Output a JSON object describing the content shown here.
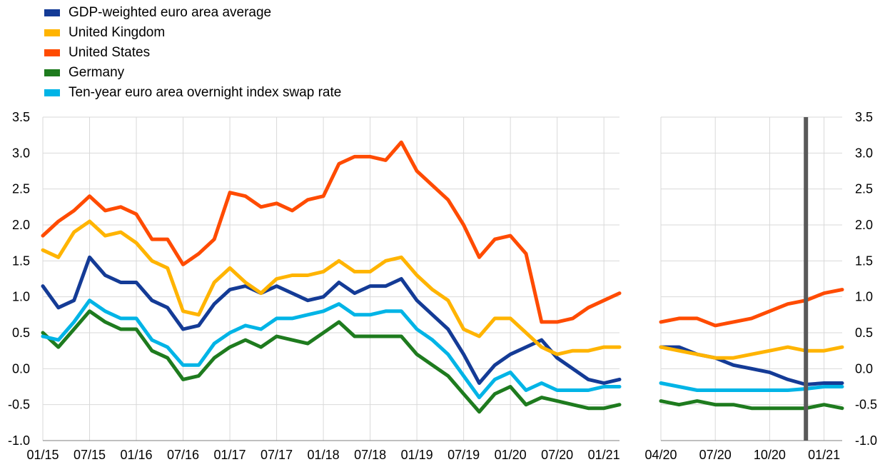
{
  "legend": [
    {
      "label": "GDP-weighted euro area average",
      "color": "#143B96"
    },
    {
      "label": "United Kingdom",
      "color": "#FFB400"
    },
    {
      "label": "United States",
      "color": "#FF4B00"
    },
    {
      "label": "Germany",
      "color": "#1E7B1E"
    },
    {
      "label": "Ten-year euro area overnight index swap rate",
      "color": "#00B4E6"
    }
  ],
  "chart_data": [
    {
      "type": "line",
      "title": "",
      "xlabel": "",
      "ylabel": "",
      "x_tick_labels": [
        "01/15",
        "07/15",
        "01/16",
        "07/16",
        "01/17",
        "07/17",
        "01/18",
        "07/18",
        "01/19",
        "07/19",
        "01/20",
        "07/20",
        "01/21"
      ],
      "y_tick_labels": [
        "3.5",
        "3.0",
        "2.5",
        "2.0",
        "1.5",
        "1.0",
        "0.5",
        "0.0",
        "-0.5",
        "-1.0"
      ],
      "ylim": [
        -1.0,
        3.5
      ],
      "grid": true,
      "x": [
        "01/15",
        "03/15",
        "05/15",
        "07/15",
        "09/15",
        "11/15",
        "01/16",
        "03/16",
        "05/16",
        "07/16",
        "09/16",
        "11/16",
        "01/17",
        "03/17",
        "05/17",
        "07/17",
        "09/17",
        "11/17",
        "01/18",
        "03/18",
        "05/18",
        "07/18",
        "09/18",
        "11/18",
        "01/19",
        "03/19",
        "05/19",
        "07/19",
        "09/19",
        "11/19",
        "01/20",
        "03/20",
        "05/20",
        "07/20",
        "09/20",
        "11/20",
        "01/21",
        "02/21"
      ],
      "series": [
        {
          "name": "GDP-weighted euro area average",
          "color": "#143B96",
          "values": [
            1.15,
            0.85,
            0.95,
            1.55,
            1.3,
            1.2,
            1.2,
            0.95,
            0.85,
            0.55,
            0.6,
            0.9,
            1.1,
            1.15,
            1.05,
            1.15,
            1.05,
            0.95,
            1.0,
            1.2,
            1.05,
            1.15,
            1.15,
            1.25,
            0.95,
            0.75,
            0.55,
            0.2,
            -0.2,
            0.05,
            0.2,
            0.3,
            0.4,
            0.15,
            0.0,
            -0.15,
            -0.2,
            -0.15
          ]
        },
        {
          "name": "United Kingdom",
          "color": "#FFB400",
          "values": [
            1.65,
            1.55,
            1.9,
            2.05,
            1.85,
            1.9,
            1.75,
            1.5,
            1.4,
            0.8,
            0.75,
            1.2,
            1.4,
            1.2,
            1.05,
            1.25,
            1.3,
            1.3,
            1.35,
            1.5,
            1.35,
            1.35,
            1.5,
            1.55,
            1.3,
            1.1,
            0.95,
            0.55,
            0.45,
            0.7,
            0.7,
            0.5,
            0.3,
            0.2,
            0.25,
            0.25,
            0.3,
            0.3
          ]
        },
        {
          "name": "United States",
          "color": "#FF4B00",
          "values": [
            1.85,
            2.05,
            2.2,
            2.4,
            2.2,
            2.25,
            2.15,
            1.8,
            1.8,
            1.45,
            1.6,
            1.8,
            2.45,
            2.4,
            2.25,
            2.3,
            2.2,
            2.35,
            2.4,
            2.85,
            2.95,
            2.95,
            2.9,
            3.15,
            2.75,
            2.55,
            2.35,
            2.0,
            1.55,
            1.8,
            1.85,
            1.6,
            0.65,
            0.65,
            0.7,
            0.85,
            0.95,
            1.05
          ]
        },
        {
          "name": "Germany",
          "color": "#1E7B1E",
          "values": [
            0.5,
            0.3,
            0.55,
            0.8,
            0.65,
            0.55,
            0.55,
            0.25,
            0.15,
            -0.15,
            -0.1,
            0.15,
            0.3,
            0.4,
            0.3,
            0.45,
            0.4,
            0.35,
            0.5,
            0.65,
            0.45,
            0.45,
            0.45,
            0.45,
            0.2,
            0.05,
            -0.1,
            -0.35,
            -0.6,
            -0.35,
            -0.25,
            -0.5,
            -0.4,
            -0.45,
            -0.5,
            -0.55,
            -0.55,
            -0.5
          ]
        },
        {
          "name": "Ten-year euro area overnight index swap rate",
          "color": "#00B4E6",
          "values": [
            0.45,
            0.4,
            0.65,
            0.95,
            0.8,
            0.7,
            0.7,
            0.4,
            0.3,
            0.05,
            0.05,
            0.35,
            0.5,
            0.6,
            0.55,
            0.7,
            0.7,
            0.75,
            0.8,
            0.9,
            0.75,
            0.75,
            0.8,
            0.8,
            0.55,
            0.4,
            0.2,
            -0.1,
            -0.4,
            -0.15,
            -0.05,
            -0.3,
            -0.2,
            -0.3,
            -0.3,
            -0.3,
            -0.25,
            -0.25
          ]
        }
      ]
    },
    {
      "type": "line",
      "title": "",
      "xlabel": "",
      "ylabel": "",
      "x_tick_labels": [
        "04/20",
        "07/20",
        "10/20",
        "01/21"
      ],
      "y_tick_labels": [
        "3.5",
        "3.0",
        "2.5",
        "2.0",
        "1.5",
        "1.0",
        "0.5",
        "0.0",
        "-0.5",
        "-1.0"
      ],
      "ylim": [
        -1.0,
        3.5
      ],
      "grid": true,
      "marker_line": "12/20",
      "x": [
        "04/20",
        "05/20",
        "06/20",
        "07/20",
        "08/20",
        "09/20",
        "10/20",
        "11/20",
        "12/20",
        "01/21",
        "02/21"
      ],
      "series": [
        {
          "name": "GDP-weighted euro area average",
          "color": "#143B96",
          "values": [
            0.3,
            0.3,
            0.2,
            0.15,
            0.05,
            0.0,
            -0.05,
            -0.15,
            -0.22,
            -0.2,
            -0.2
          ]
        },
        {
          "name": "United Kingdom",
          "color": "#FFB400",
          "values": [
            0.3,
            0.25,
            0.2,
            0.15,
            0.15,
            0.2,
            0.25,
            0.3,
            0.25,
            0.25,
            0.3
          ]
        },
        {
          "name": "United States",
          "color": "#FF4B00",
          "values": [
            0.65,
            0.7,
            0.7,
            0.6,
            0.65,
            0.7,
            0.8,
            0.9,
            0.95,
            1.05,
            1.1
          ]
        },
        {
          "name": "Germany",
          "color": "#1E7B1E",
          "values": [
            -0.45,
            -0.5,
            -0.45,
            -0.5,
            -0.5,
            -0.55,
            -0.55,
            -0.55,
            -0.55,
            -0.5,
            -0.55
          ]
        },
        {
          "name": "Ten-year euro area overnight index swap rate",
          "color": "#00B4E6",
          "values": [
            -0.2,
            -0.25,
            -0.3,
            -0.3,
            -0.3,
            -0.3,
            -0.3,
            -0.3,
            -0.28,
            -0.25,
            -0.25
          ]
        }
      ]
    }
  ]
}
